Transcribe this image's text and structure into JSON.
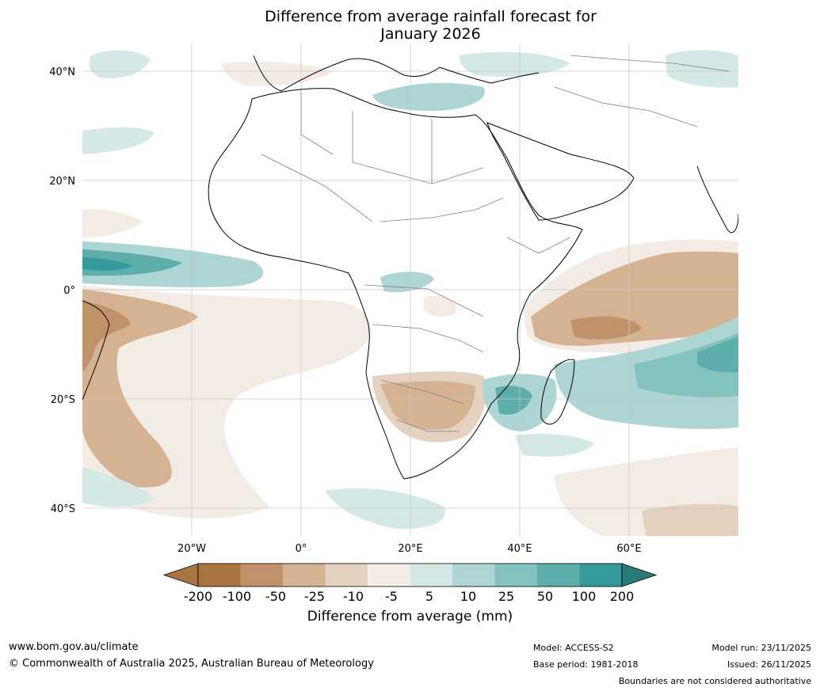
{
  "title": "Difference from average rainfall forecast for January 2026",
  "title_line1": "Difference from average rainfall forecast for",
  "title_line2": "January 2026",
  "axes": {
    "lat_labels": [
      "40°N",
      "20°N",
      "0°",
      "20°S",
      "40°S"
    ],
    "lon_labels": [
      "20°W",
      "0°",
      "20°E",
      "40°E",
      "60°E"
    ]
  },
  "colorbar": {
    "title": "Difference from average (mm)",
    "tick_labels": [
      "-200",
      "-100",
      "-50",
      "-25",
      "-10",
      "-5",
      "5",
      "10",
      "25",
      "50",
      "100",
      "200"
    ],
    "colors": [
      "#a87540",
      "#c0926a",
      "#d4b292",
      "#e4d1c0",
      "#f2ece5",
      "#ffffff",
      "#d4e8e6",
      "#acd5d3",
      "#84c2c0",
      "#5eaeab",
      "#36999a",
      "#2a7a78"
    ]
  },
  "footer": {
    "url": "www.bom.gov.au/climate",
    "copyright": "© Commonwealth of Australia 2025, Australian Bureau of Meteorology",
    "model": "Model: ACCESS-S2",
    "base_period": "Base period: 1981-2018",
    "model_run": "Model run: 23/11/2025",
    "issued": "Issued: 26/11/2025",
    "disclaimer": "Boundaries are not considered authoritative"
  }
}
